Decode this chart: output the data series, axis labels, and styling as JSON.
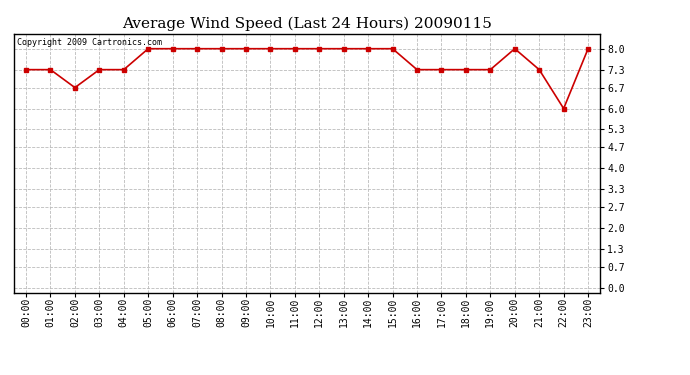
{
  "title": "Average Wind Speed (Last 24 Hours) 20090115",
  "copyright_text": "Copyright 2009 Cartronics.com",
  "hours": [
    "00:00",
    "01:00",
    "02:00",
    "03:00",
    "04:00",
    "05:00",
    "06:00",
    "07:00",
    "08:00",
    "09:00",
    "10:00",
    "11:00",
    "12:00",
    "13:00",
    "14:00",
    "15:00",
    "16:00",
    "17:00",
    "18:00",
    "19:00",
    "20:00",
    "21:00",
    "22:00",
    "23:00"
  ],
  "values": [
    7.3,
    7.3,
    6.7,
    7.3,
    7.3,
    8.0,
    8.0,
    8.0,
    8.0,
    8.0,
    8.0,
    8.0,
    8.0,
    8.0,
    8.0,
    8.0,
    7.3,
    7.3,
    7.3,
    7.3,
    8.0,
    7.3,
    6.0,
    8.0
  ],
  "line_color": "#cc0000",
  "marker": "s",
  "marker_size": 3,
  "grid_color": "#bbbbbb",
  "grid_style": "--",
  "background_color": "#ffffff",
  "yticks": [
    0.0,
    0.7,
    1.3,
    2.0,
    2.7,
    3.3,
    4.0,
    4.7,
    5.3,
    6.0,
    6.7,
    7.3,
    8.0
  ],
  "ylim": [
    -0.15,
    8.5
  ],
  "title_fontsize": 11,
  "copyright_fontsize": 6,
  "tick_fontsize": 7,
  "line_width": 1.2
}
